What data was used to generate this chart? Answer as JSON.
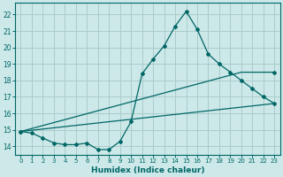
{
  "xlabel": "Humidex (Indice chaleur)",
  "bg_color": "#cce8e8",
  "grid_color": "#aacccc",
  "line_color": "#006666",
  "xlim": [
    -0.5,
    23.5
  ],
  "ylim": [
    13.5,
    22.7
  ],
  "xticks": [
    0,
    1,
    2,
    3,
    4,
    5,
    6,
    7,
    8,
    9,
    10,
    11,
    12,
    13,
    14,
    15,
    16,
    17,
    18,
    19,
    20,
    21,
    22,
    23
  ],
  "yticks": [
    14,
    15,
    16,
    17,
    18,
    19,
    20,
    21,
    22
  ],
  "line1_x": [
    0,
    1,
    2,
    3,
    4,
    5,
    6,
    7,
    8,
    9,
    10,
    11,
    12,
    13,
    14,
    15,
    16,
    17,
    18,
    19,
    20,
    21,
    22,
    23
  ],
  "line1_y": [
    14.9,
    14.8,
    14.5,
    14.2,
    14.1,
    14.1,
    14.2,
    13.8,
    13.8,
    14.3,
    15.5,
    18.4,
    19.3,
    20.1,
    21.3,
    22.2,
    21.1,
    19.6,
    19.0,
    18.5,
    18.0,
    17.5,
    17.0,
    16.6
  ],
  "line2_x": [
    0,
    23
  ],
  "line2_y": [
    14.9,
    16.6
  ],
  "line3_x": [
    0,
    20,
    23
  ],
  "line3_y": [
    14.9,
    18.5,
    18.5
  ],
  "marker": "D",
  "markersize": 2.0,
  "linewidth": 0.9,
  "xlabel_fontsize": 6.5,
  "xtick_fontsize": 5.0,
  "ytick_fontsize": 5.5
}
